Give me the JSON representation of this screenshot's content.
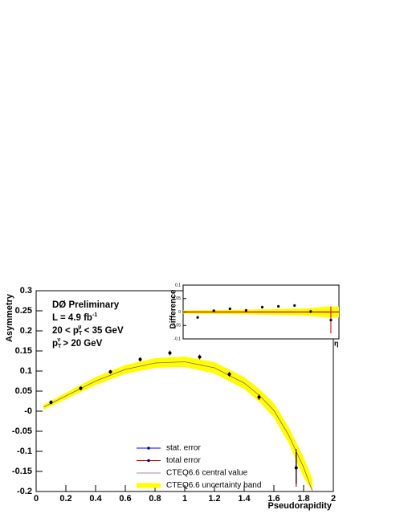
{
  "chart_data": [
    {
      "type": "scatter",
      "xlabel": "Pseudorapidity",
      "ylabel": "Asymmetry",
      "xlim": [
        0,
        2
      ],
      "ylim": [
        -0.2,
        0.3
      ],
      "xticks": [
        0,
        0.2,
        0.4,
        0.6,
        0.8,
        1,
        1.2,
        1.4,
        1.6,
        1.8,
        2
      ],
      "yticks": [
        -0.2,
        -0.15,
        -0.1,
        -0.05,
        {
          "value": 0,
          "label": "-0"
        },
        0.05,
        0.1,
        0.15,
        0.2,
        0.25,
        0.3
      ],
      "annotations": [
        [
          {
            "text": "DØ Preliminary"
          }
        ],
        [
          {
            "text": "L = 4.9 fb"
          },
          {
            "text": "-1",
            "pos": "sup"
          }
        ],
        [
          {
            "text": "20 < p"
          },
          {
            "text": "T",
            "pos": "sub"
          },
          {
            "text": "μ",
            "pos": "sup"
          },
          {
            "text": " < 35 GeV"
          }
        ],
        [
          {
            "text": "p"
          },
          {
            "text": "T",
            "pos": "sub"
          },
          {
            "text": "ν",
            "pos": "sup"
          },
          {
            "text": " > 20 GeV"
          }
        ]
      ],
      "data": {
        "x": [
          0.1,
          0.3,
          0.5,
          0.7,
          0.9,
          1.1,
          1.3,
          1.5,
          1.75
        ],
        "values": [
          0.022,
          0.057,
          0.098,
          0.129,
          0.145,
          0.135,
          0.092,
          0.035,
          -0.141
        ],
        "stat_errors": [
          0.003,
          0.003,
          0.003,
          0.003,
          0.003,
          0.003,
          0.003,
          0.004,
          0.04
        ],
        "total_errors": [
          0.005,
          0.005,
          0.005,
          0.005,
          0.006,
          0.006,
          0.006,
          0.007,
          0.047
        ],
        "stat_name": "stat. error",
        "stat_color": "#0000ff",
        "total_name": "total error",
        "total_color": "#cc0000",
        "marker_color": "#000000"
      },
      "theory": {
        "name": "CTEQ6.6 central value",
        "color": "#8a5a8a",
        "x": [
          0.05,
          0.2,
          0.4,
          0.6,
          0.8,
          1,
          1.2,
          1.4,
          1.5,
          1.6,
          1.7,
          1.8,
          1.86
        ],
        "values": [
          0.01,
          0.038,
          0.075,
          0.104,
          0.12,
          0.123,
          0.108,
          0.07,
          0.04,
          0.002,
          -0.06,
          -0.14,
          -0.2
        ]
      },
      "band": {
        "name": "CTEQ6.6 uncertainty band",
        "color": "#ffff00",
        "lower": [
          0.004,
          0.03,
          0.065,
          0.093,
          0.108,
          0.11,
          0.094,
          0.055,
          0.024,
          -0.016,
          -0.08,
          -0.165,
          -0.2
        ],
        "upper": [
          0.016,
          0.046,
          0.085,
          0.115,
          0.132,
          0.136,
          0.122,
          0.085,
          0.056,
          0.02,
          -0.04,
          -0.115,
          -0.17
        ]
      }
    },
    {
      "type": "scatter",
      "ylabel": "Difference",
      "xlabel": "η",
      "xlim": [
        -0.08,
        1.85
      ],
      "ylim": [
        -0.1,
        0.1
      ],
      "yticks": [
        -0.1,
        -0.05,
        0,
        0.05,
        0.1
      ],
      "x": [
        0.1,
        0.3,
        0.5,
        0.7,
        0.9,
        1.1,
        1.3,
        1.5,
        1.75
      ],
      "values": [
        -0.02,
        0.005,
        0.012,
        0.006,
        0.018,
        0.021,
        0.024,
        0.002,
        -0.03
      ],
      "errors": [
        0.004,
        0.004,
        0.004,
        0.004,
        0.005,
        0.005,
        0.005,
        0.006,
        0.05
      ],
      "color": "#000000",
      "error_color": "#cc0000",
      "zero_color": "#cc0000",
      "band": {
        "color": "#ffff00",
        "x": [
          -0.08,
          0.5,
          1,
          1.4,
          1.7,
          1.85
        ],
        "lower": [
          -0.006,
          -0.008,
          -0.01,
          -0.013,
          -0.02,
          -0.02
        ],
        "upper": [
          0.006,
          0.008,
          0.01,
          0.013,
          0.02,
          0.02
        ]
      }
    }
  ]
}
